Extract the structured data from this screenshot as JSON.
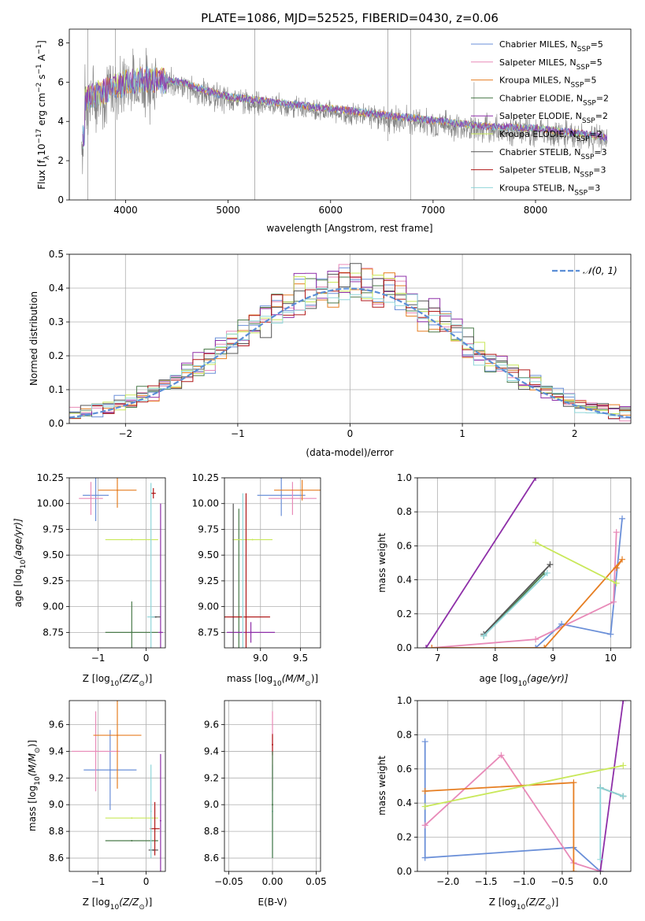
{
  "figure": {
    "title": "PLATE=1086, MJD=52525, FIBERID=0430, z=0.06"
  },
  "colors": {
    "Chabrier MILES": "#6a8fd8",
    "Salpeter MILES": "#e88ab8",
    "Kroupa MILES": "#e67e22",
    "Chabrier ELODIE": "#4a7a4a",
    "Salpeter ELODIE": "#8e2fa8",
    "Kroupa ELODIE": "#c9e85a",
    "Chabrier STELIB": "#555555",
    "Salpeter STELIB": "#b01818",
    "Kroupa STELIB": "#8fd6d9",
    "data": "#808080",
    "normal": "#5b8ed6"
  },
  "chart_data": [
    {
      "id": "spectrum",
      "type": "line",
      "title": "PLATE=1086, MJD=52525, FIBERID=0430, z=0.06",
      "xlabel": "wavelength [Angstrom, rest frame]",
      "ylabel_main": "Flux [f",
      "ylabel_sub": "λ",
      "ylabel_rest": "10",
      "ylabel_exp": "−17",
      "ylabel_tail": " erg cm",
      "xlim": [
        3450,
        8930
      ],
      "ylim": [
        0,
        8.7
      ],
      "xticks": [
        4000,
        5000,
        6000,
        7000,
        8000
      ],
      "yticks": [
        0,
        2,
        4,
        6,
        8
      ],
      "legend_position": "top-right",
      "legend": [
        {
          "label": "Chabrier MILES, N",
          "sub": "SSP",
          "suffix": "=5"
        },
        {
          "label": "Salpeter MILES, N",
          "sub": "SSP",
          "suffix": "=5"
        },
        {
          "label": "Kroupa MILES, N",
          "sub": "SSP",
          "suffix": "=5"
        },
        {
          "label": "Chabrier ELODIE, N",
          "sub": "SSP",
          "suffix": "=2"
        },
        {
          "label": "Salpeter ELODIE, N",
          "sub": "SSP",
          "suffix": "=2"
        },
        {
          "label": "Kroupa ELODIE, N",
          "sub": "SSP",
          "suffix": "=2"
        },
        {
          "label": "Chabrier STELIB, N",
          "sub": "SSP",
          "suffix": "=3"
        },
        {
          "label": "Salpeter STELIB, N",
          "sub": "SSP",
          "suffix": "=3"
        },
        {
          "label": "Kroupa STELIB, N",
          "sub": "SSP",
          "suffix": "=3"
        }
      ],
      "model_trend": [
        [
          3600,
          5.0
        ],
        [
          3800,
          5.4
        ],
        [
          4000,
          5.8
        ],
        [
          4200,
          6.0
        ],
        [
          4500,
          5.9
        ],
        [
          4800,
          5.4
        ],
        [
          5000,
          5.1
        ],
        [
          5500,
          4.8
        ],
        [
          6000,
          4.5
        ],
        [
          6500,
          4.2
        ],
        [
          7000,
          3.9
        ],
        [
          7500,
          3.6
        ],
        [
          8000,
          3.5
        ],
        [
          8500,
          3.2
        ],
        [
          8700,
          3.0
        ]
      ]
    },
    {
      "id": "residuals",
      "type": "line",
      "xlabel": "(data-model)/error",
      "ylabel": "Normed distribution",
      "xlim": [
        -2.5,
        2.5
      ],
      "ylim": [
        0,
        0.5
      ],
      "xticks": [
        -2,
        -1,
        0,
        1,
        2
      ],
      "yticks": [
        0.0,
        0.1,
        0.2,
        0.3,
        0.4,
        0.5
      ],
      "grid": true,
      "legend_position": "top-right",
      "legend": "𝒩(0, 1)",
      "bin_width": 0.1
    },
    {
      "id": "age-vs-Z",
      "type": "scatter",
      "xlabel": "Z [log",
      "xlabel_sub": "10",
      "xlabel_rest": "(Z/Z",
      "xlabel_odot": "⊙",
      "xlabel_close": ")]",
      "ylabel": "age  [log",
      "ylabel_sub": "10",
      "ylabel_rest": "(age/yr)]",
      "xlim": [
        -1.6,
        0.4
      ],
      "ylim": [
        8.6,
        10.25
      ],
      "xticks": [
        -1,
        0
      ],
      "yticks": [
        8.75,
        9.0,
        9.25,
        9.5,
        9.75,
        10.0,
        10.25
      ],
      "grid": true,
      "points": [
        {
          "model": "Chabrier MILES",
          "x": -1.05,
          "xerr": 0.27,
          "y": 10.08,
          "yerr": 0.25
        },
        {
          "model": "Salpeter MILES",
          "x": -1.15,
          "xerr": 0.25,
          "y": 10.05,
          "yerr": 0.16
        },
        {
          "model": "Kroupa MILES",
          "x": -0.6,
          "xerr": 0.4,
          "y": 10.13,
          "yerr": 0.17
        },
        {
          "model": "Chabrier ELODIE",
          "x": -0.3,
          "xerr": 0.55,
          "y": 8.75,
          "yerr": 0.3
        },
        {
          "model": "Salpeter ELODIE",
          "x": 0.3,
          "xerr": 0.05,
          "y": 8.75,
          "yerr": 1.25
        },
        {
          "model": "Kroupa ELODIE",
          "x": -0.3,
          "xerr": 0.55,
          "y": 9.65,
          "yerr": 0.0
        },
        {
          "model": "Chabrier STELIB",
          "x": 0.2,
          "xerr": 0.1,
          "y": 8.9,
          "yerr": 0.0
        },
        {
          "model": "Salpeter STELIB",
          "x": 0.15,
          "xerr": 0.05,
          "y": 10.1,
          "yerr": 0.05
        },
        {
          "model": "Kroupa STELIB",
          "x": 0.1,
          "xerr": 0.08,
          "y": 8.9,
          "yerr": 1.3
        }
      ]
    },
    {
      "id": "age-vs-mass",
      "type": "scatter",
      "xlabel": "mass [log",
      "xlabel_sub": "10",
      "xlabel_rest": "(M/M",
      "xlabel_odot": "⊙",
      "xlabel_close": ")]",
      "xlim": [
        8.55,
        9.75
      ],
      "ylim": [
        8.6,
        10.25
      ],
      "xticks": [
        9.0,
        9.5
      ],
      "yticks": [
        8.75,
        9.0,
        9.25,
        9.5,
        9.75,
        10.0,
        10.25
      ],
      "grid": true,
      "points": [
        {
          "model": "Chabrier MILES",
          "x": 9.26,
          "xerr": 0.3,
          "y": 10.08,
          "yerr": 0.2
        },
        {
          "model": "Salpeter MILES",
          "x": 9.4,
          "xerr": 0.3,
          "y": 10.05,
          "yerr": 0.16
        },
        {
          "model": "Kroupa MILES",
          "x": 9.52,
          "xerr": 0.35,
          "y": 10.13,
          "yerr": 0.1
        },
        {
          "model": "Chabrier ELODIE",
          "x": 8.73,
          "xerr": 0.0,
          "y": 8.75,
          "yerr": 1.2
        },
        {
          "model": "Salpeter ELODIE",
          "x": 8.88,
          "xerr": 0.3,
          "y": 8.75,
          "yerr": 0.1
        },
        {
          "model": "Kroupa ELODIE",
          "x": 8.9,
          "xerr": 0.25,
          "y": 9.65,
          "yerr": 0.0
        },
        {
          "model": "Chabrier STELIB",
          "x": 8.66,
          "xerr": 0.0,
          "y": 8.9,
          "yerr": 1.1
        },
        {
          "model": "Salpeter STELIB",
          "x": 8.82,
          "xerr": 0.3,
          "y": 8.9,
          "yerr": 1.2
        },
        {
          "model": "Kroupa STELIB",
          "x": 8.78,
          "xerr": 0.0,
          "y": 8.9,
          "yerr": 1.2
        }
      ]
    },
    {
      "id": "weight-vs-age",
      "type": "line",
      "xlabel": "age  [log",
      "xlabel_sub": "10",
      "xlabel_rest": "(age/yr)]",
      "ylabel": "mass weight",
      "xlim": [
        6.65,
        10.35
      ],
      "ylim": [
        0,
        1
      ],
      "xticks": [
        7,
        8,
        9,
        10
      ],
      "yticks": [
        0.0,
        0.2,
        0.4,
        0.6,
        0.8,
        1.0
      ],
      "grid": true,
      "series": [
        {
          "model": "Chabrier MILES",
          "points": [
            [
              8.7,
              0.0
            ],
            [
              9.15,
              0.14
            ],
            [
              10.0,
              0.08
            ],
            [
              10.2,
              0.76
            ]
          ]
        },
        {
          "model": "Salpeter MILES",
          "points": [
            [
              6.9,
              0.0
            ],
            [
              8.7,
              0.05
            ],
            [
              10.05,
              0.27
            ],
            [
              10.1,
              0.68
            ]
          ]
        },
        {
          "model": "Kroupa MILES",
          "points": [
            [
              6.9,
              0.0
            ],
            [
              8.85,
              0.0
            ],
            [
              10.2,
              0.52
            ],
            [
              10.1,
              0.47
            ]
          ]
        },
        {
          "model": "Chabrier ELODIE",
          "points": [
            [
              7.8,
              0.07
            ],
            [
              8.85,
              0.44
            ]
          ]
        },
        {
          "model": "Salpeter ELODIE",
          "points": [
            [
              6.8,
              0.0
            ],
            [
              8.7,
              1.0
            ]
          ]
        },
        {
          "model": "Kroupa ELODIE",
          "points": [
            [
              8.7,
              0.62
            ],
            [
              10.1,
              0.38
            ]
          ]
        },
        {
          "model": "Chabrier STELIB",
          "points": [
            [
              7.8,
              0.08
            ],
            [
              8.95,
              0.49
            ]
          ]
        },
        {
          "model": "Kroupa STELIB",
          "points": [
            [
              7.8,
              0.07
            ],
            [
              8.9,
              0.44
            ]
          ]
        }
      ]
    },
    {
      "id": "mass-vs-Z",
      "type": "scatter",
      "xlabel": "Z [log",
      "xlabel_sub": "10",
      "xlabel_rest": "(Z/Z",
      "xlabel_odot": "⊙",
      "xlabel_close": ")]",
      "ylabel": "mass [log",
      "ylabel_sub": "10",
      "ylabel_rest": "(M/M",
      "ylabel_odot": "⊙",
      "ylabel_close": ")]",
      "xlim": [
        -1.6,
        0.4
      ],
      "ylim": [
        8.5,
        9.78
      ],
      "xticks": [
        -1,
        0
      ],
      "yticks": [
        8.6,
        8.8,
        9.0,
        9.2,
        9.4,
        9.6
      ],
      "grid": true,
      "points": [
        {
          "model": "Chabrier MILES",
          "x": -0.75,
          "xerr": 0.55,
          "y": 9.26,
          "yerr": 0.3
        },
        {
          "model": "Salpeter MILES",
          "x": -1.05,
          "xerr": 0.5,
          "y": 9.4,
          "yerr": 0.3
        },
        {
          "model": "Kroupa MILES",
          "x": -0.6,
          "xerr": 0.5,
          "y": 9.52,
          "yerr": 0.4
        },
        {
          "model": "Chabrier ELODIE",
          "x": -0.3,
          "xerr": 0.55,
          "y": 8.73,
          "yerr": 0.0
        },
        {
          "model": "Salpeter ELODIE",
          "x": 0.3,
          "xerr": 0.0,
          "y": 8.88,
          "yerr": 0.5
        },
        {
          "model": "Kroupa ELODIE",
          "x": -0.3,
          "xerr": 0.55,
          "y": 8.9,
          "yerr": 0.0
        },
        {
          "model": "Chabrier STELIB",
          "x": 0.15,
          "xerr": 0.1,
          "y": 8.66,
          "yerr": 0.0
        },
        {
          "model": "Salpeter STELIB",
          "x": 0.18,
          "xerr": 0.1,
          "y": 8.82,
          "yerr": 0.2
        },
        {
          "model": "Kroupa STELIB",
          "x": 0.1,
          "xerr": 0.0,
          "y": 8.95,
          "yerr": 0.35
        }
      ]
    },
    {
      "id": "mass-vs-ebv",
      "type": "scatter",
      "xlabel": "E(B-V)",
      "xlim": [
        -0.055,
        0.055
      ],
      "ylim": [
        8.5,
        9.78
      ],
      "xticks": [
        -0.05,
        0.0,
        0.05
      ],
      "xticklabels": [
        "−0.05",
        "0.00",
        "0.05"
      ],
      "yticks": [
        8.6,
        8.8,
        9.0,
        9.2,
        9.4,
        9.6
      ],
      "grid": true,
      "points": [
        {
          "model": "Salpeter MILES",
          "x": 0.0,
          "y": 9.4,
          "yerr": 0.3
        },
        {
          "model": "Salpeter STELIB",
          "x": 0.0,
          "y": 9.45,
          "yerr": 0.08
        },
        {
          "model": "Kroupa STELIB",
          "x": 0.0,
          "y": 8.95,
          "yerr": 0.35
        },
        {
          "model": "Chabrier ELODIE",
          "x": 0.0,
          "y": 9.0,
          "yerr": 0.4
        }
      ]
    },
    {
      "id": "weight-vs-Z",
      "type": "line",
      "xlabel": "Z [log",
      "xlabel_sub": "10",
      "xlabel_rest": "(Z/Z",
      "xlabel_odot": "⊙",
      "xlabel_close": ")]",
      "ylabel": "mass weight",
      "xlim": [
        -2.4,
        0.4
      ],
      "ylim": [
        0,
        1
      ],
      "xticks": [
        -2.0,
        -1.5,
        -1.0,
        -0.5,
        0.0
      ],
      "xticklabels": [
        "−2.0",
        "−1.5",
        "−1.0",
        "−0.5",
        "0.0"
      ],
      "yticks": [
        0.0,
        0.2,
        0.4,
        0.6,
        0.8,
        1.0
      ],
      "grid": true,
      "series": [
        {
          "model": "Chabrier MILES",
          "points": [
            [
              -2.3,
              0.76
            ],
            [
              -2.3,
              0.08
            ],
            [
              -0.35,
              0.14
            ],
            [
              0.0,
              0.0
            ]
          ]
        },
        {
          "model": "Salpeter MILES",
          "points": [
            [
              -2.3,
              0.27
            ],
            [
              -1.3,
              0.68
            ],
            [
              -0.35,
              0.05
            ],
            [
              0.0,
              0.0
            ]
          ]
        },
        {
          "model": "Kroupa MILES",
          "points": [
            [
              -2.3,
              0.47
            ],
            [
              -0.35,
              0.52
            ],
            [
              -0.35,
              0.0
            ]
          ]
        },
        {
          "model": "Chabrier ELODIE",
          "points": [
            [
              0.0,
              0.49
            ],
            [
              0.3,
              0.44
            ]
          ]
        },
        {
          "model": "Salpeter ELODIE",
          "points": [
            [
              0.0,
              0.0
            ],
            [
              0.3,
              1.0
            ]
          ]
        },
        {
          "model": "Kroupa ELODIE",
          "points": [
            [
              -2.3,
              0.38
            ],
            [
              0.3,
              0.62
            ]
          ]
        },
        {
          "model": "Chabrier STELIB",
          "points": [
            [
              0.0,
              0.49
            ],
            [
              0.3,
              0.44
            ]
          ]
        },
        {
          "model": "Kroupa STELIB",
          "points": [
            [
              0.0,
              0.07
            ],
            [
              0.0,
              0.49
            ],
            [
              0.3,
              0.44
            ]
          ]
        }
      ]
    }
  ]
}
